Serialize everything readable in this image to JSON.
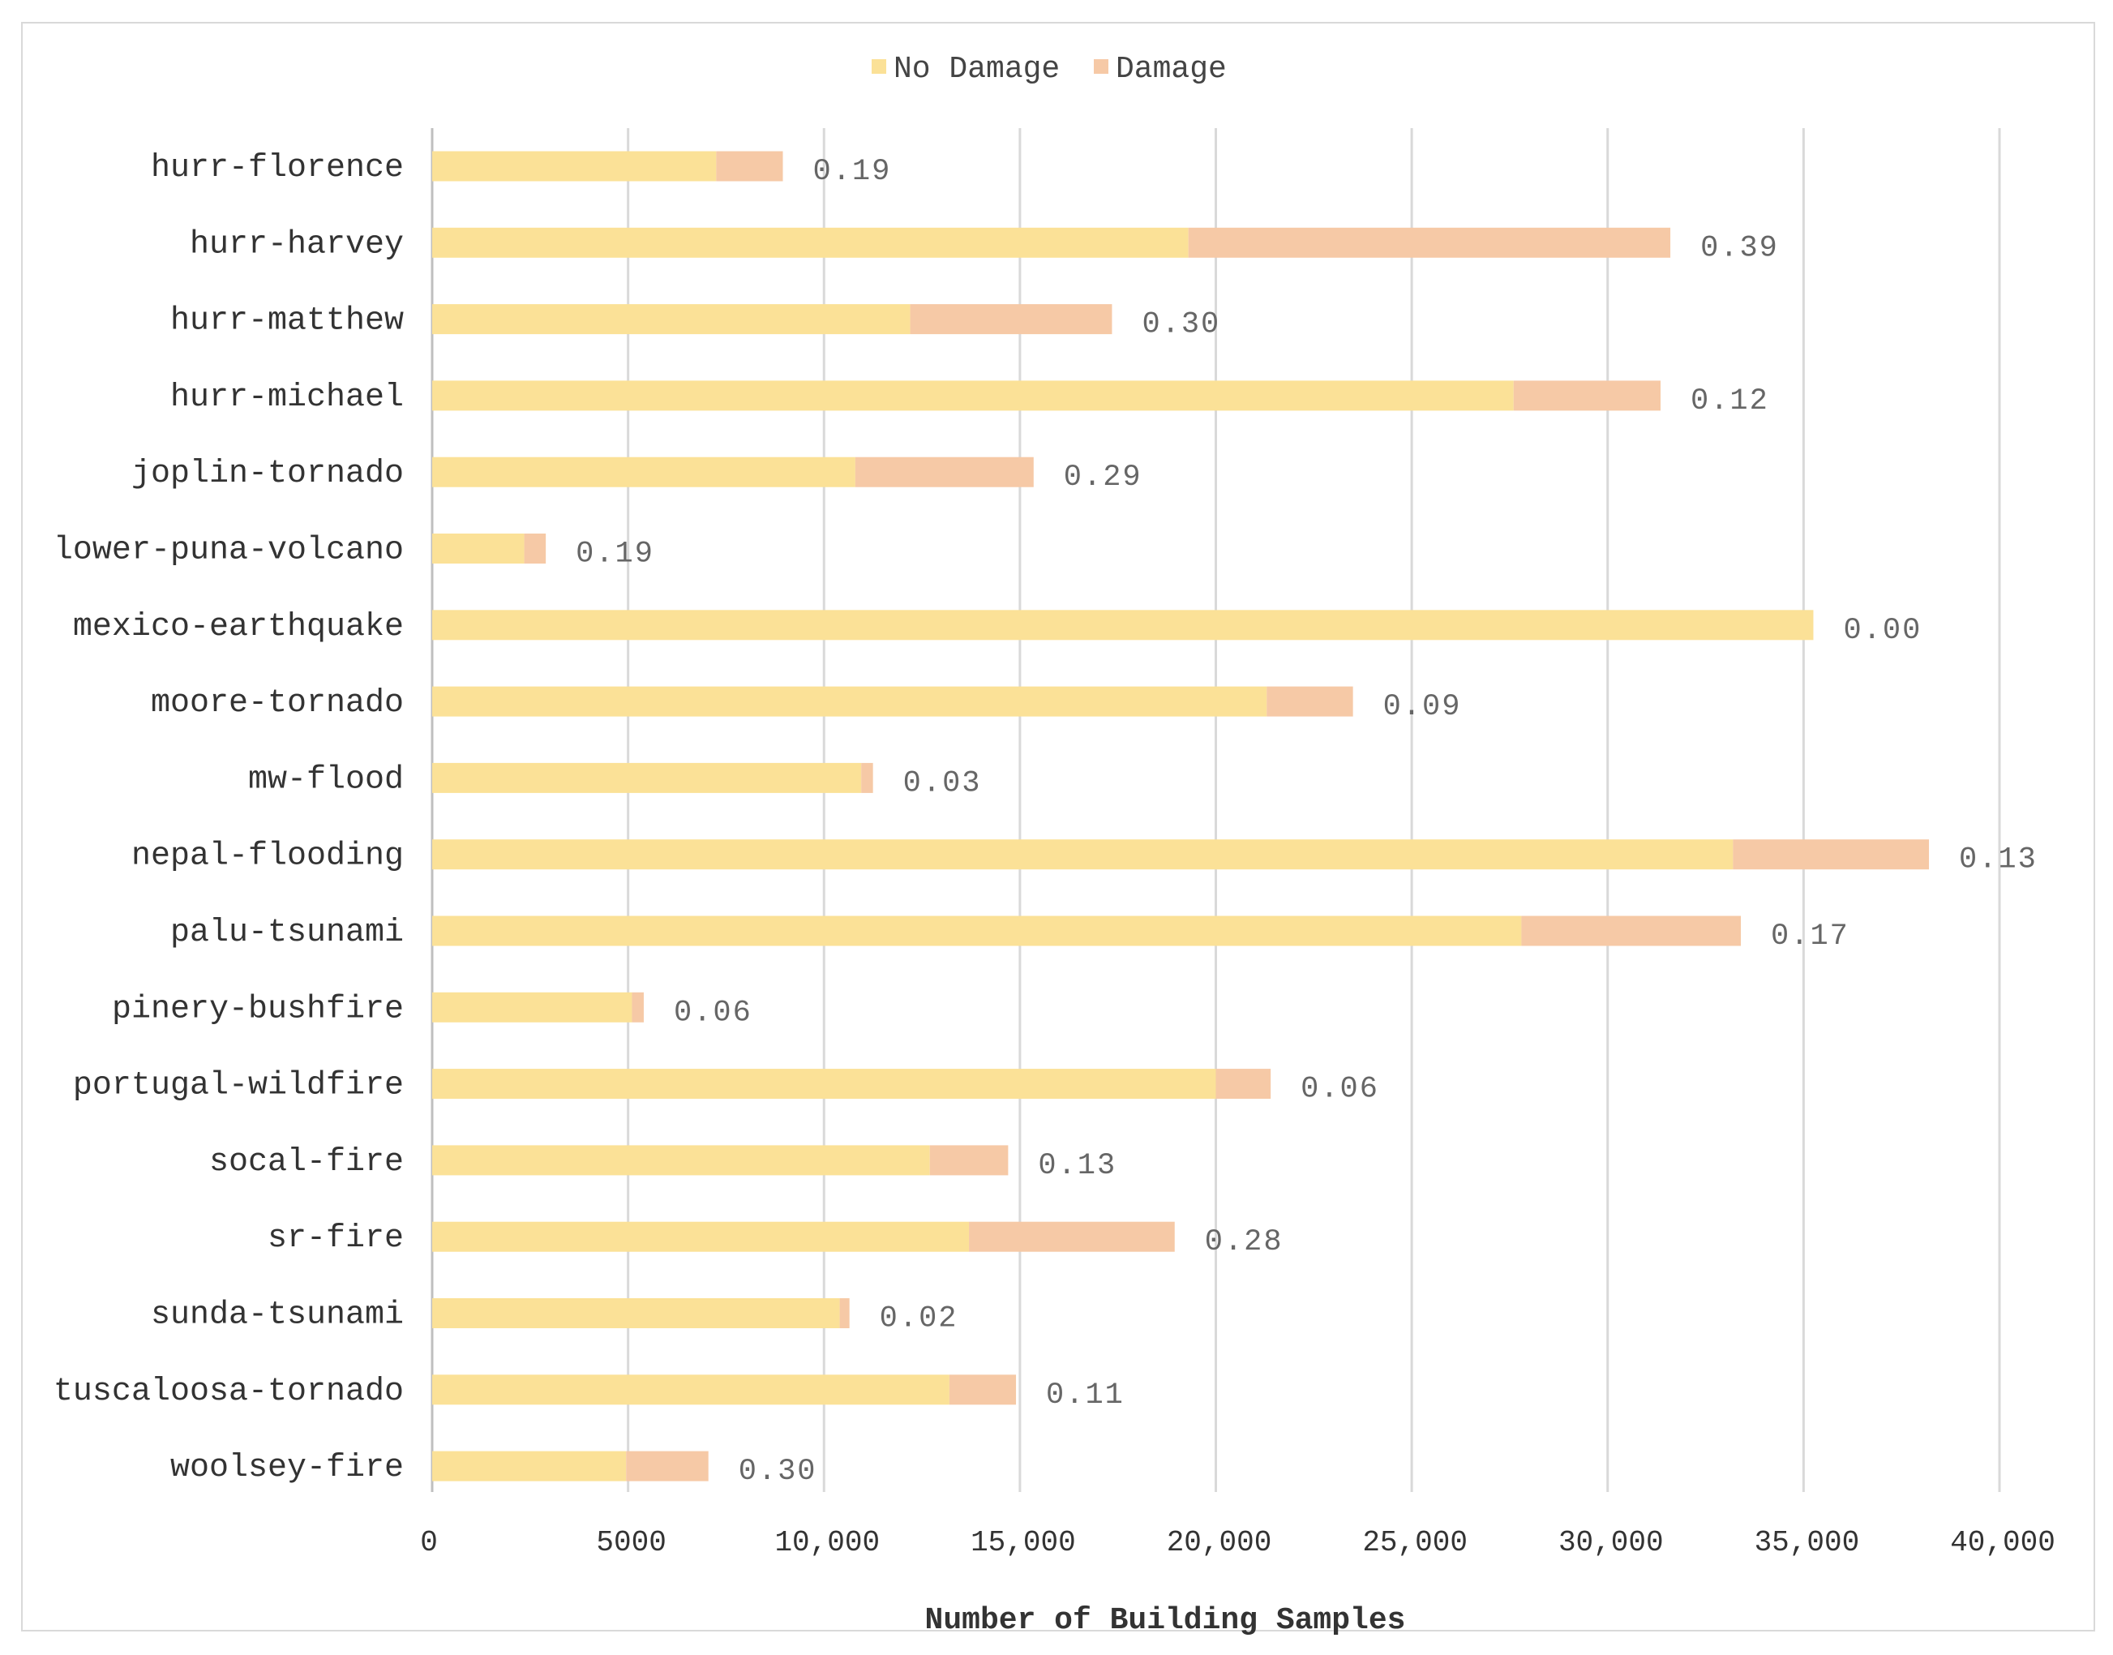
{
  "chart_data": {
    "type": "bar",
    "orientation": "horizontal",
    "stacked": true,
    "title": "",
    "xlabel": "Number of Building Samples",
    "ylabel": "",
    "xlim": [
      0,
      40000
    ],
    "x_ticks": [
      0,
      5000,
      10000,
      15000,
      20000,
      25000,
      30000,
      35000,
      40000
    ],
    "x_tick_labels": [
      "0",
      "5000",
      "10,000",
      "15,000",
      "20,000",
      "25,000",
      "30,000",
      "35,000",
      "40,000"
    ],
    "grid": "vertical",
    "legend_position": "top-center",
    "categories": [
      "hurr-florence",
      "hurr-harvey",
      "hurr-matthew",
      "hurr-michael",
      "joplin-tornado",
      "lower-puna-volcano",
      "mexico-earthquake",
      "moore-tornado",
      "mw-flood",
      "nepal-flooding",
      "palu-tsunami",
      "pinery-bushfire",
      "portugal-wildfire",
      "socal-fire",
      "sr-fire",
      "sunda-tsunami",
      "tuscaloosa-tornado",
      "woolsey-fire"
    ],
    "series": [
      {
        "name": "No Damage",
        "color": "#fbe197",
        "values": [
          7250,
          19300,
          12200,
          27600,
          10800,
          2350,
          35250,
          21300,
          10950,
          33200,
          27800,
          5100,
          20000,
          12700,
          13700,
          10400,
          13200,
          4950
        ]
      },
      {
        "name": "Damage",
        "color": "#f6c9a6",
        "values": [
          1700,
          12300,
          5150,
          3750,
          4550,
          550,
          0,
          2200,
          300,
          5000,
          5600,
          300,
          1400,
          2000,
          5250,
          250,
          1700,
          2100
        ]
      }
    ],
    "annotations": [
      "0.19",
      "0.39",
      "0.30",
      "0.12",
      "0.29",
      "0.19",
      "0.00",
      "0.09",
      "0.03",
      "0.13",
      "0.17",
      "0.06",
      "0.06",
      "0.13",
      "0.28",
      "0.02",
      "0.11",
      "0.30"
    ]
  }
}
